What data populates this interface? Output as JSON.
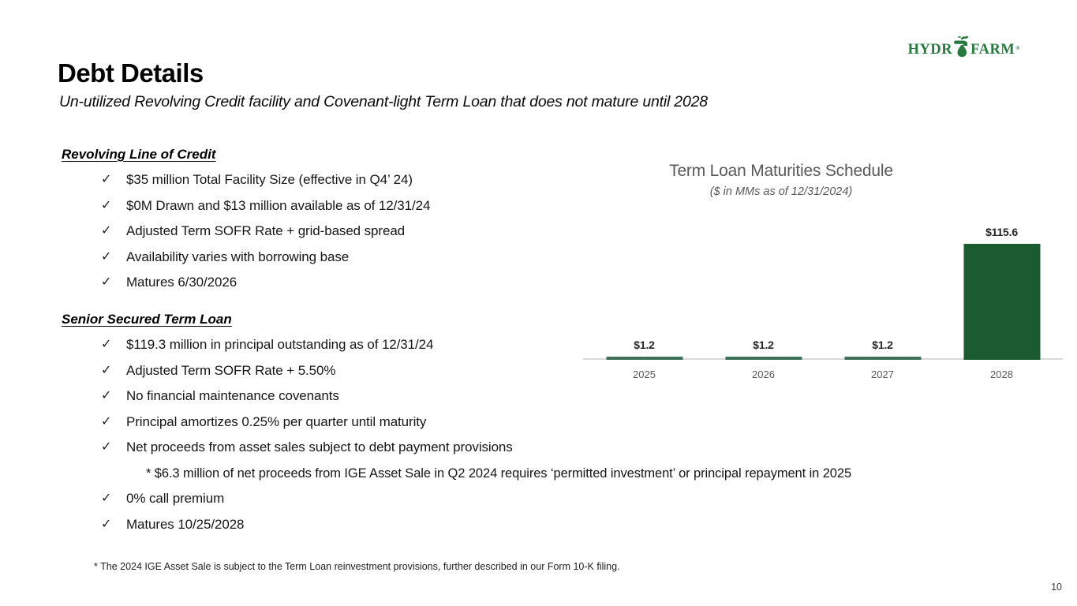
{
  "logo": {
    "part1": "HYDR",
    "part2": "FARM",
    "reg": "®",
    "brand_green": "#26793F"
  },
  "header": {
    "title": "Debt Details",
    "subtitle": "Un-utilized Revolving Credit facility and Covenant-light Term Loan that does not mature until 2028"
  },
  "bullet_glyph": "✓",
  "sections": [
    {
      "heading": "Revolving Line of Credit",
      "items": [
        {
          "text": "$35 million Total Facility Size (effective in Q4’ 24)"
        },
        {
          "text": "$0M Drawn and $13 million available as of 12/31/24"
        },
        {
          "text": "Adjusted Term SOFR Rate + grid-based spread"
        },
        {
          "text": "Availability varies with borrowing base"
        },
        {
          "text": "Matures 6/30/2026"
        }
      ]
    },
    {
      "heading": "Senior Secured Term Loan",
      "items": [
        {
          "text": "$119.3 million in principal outstanding as of 12/31/24"
        },
        {
          "text": "Adjusted Term SOFR Rate + 5.50%"
        },
        {
          "text": "No financial maintenance covenants"
        },
        {
          "text": "Principal amortizes 0.25% per quarter until maturity"
        },
        {
          "text": "Net proceeds from asset sales subject to debt payment provisions",
          "subnote": "* $6.3 million of net proceeds from IGE Asset Sale in Q2 2024 requires ‘permitted investment’ or principal repayment in 2025"
        },
        {
          "text": "0% call premium"
        },
        {
          "text": "Matures 10/25/2028"
        }
      ]
    }
  ],
  "chart_data": {
    "type": "bar",
    "title": "Term Loan Maturities Schedule",
    "subtitle": "($ in MMs as of 12/31/2024)",
    "categories": [
      "2025",
      "2026",
      "2027",
      "2028"
    ],
    "values": [
      1.2,
      1.2,
      1.2,
      115.6
    ],
    "data_labels": [
      "$1.2",
      "$1.2",
      "$1.2",
      "$115.6"
    ],
    "xlabel": "",
    "ylabel": "",
    "ylim": [
      0,
      120
    ],
    "grid": false,
    "legend": false,
    "bar_color_major": "#1A5B2F",
    "bar_color_minor": "#3E7058",
    "axis_color": "#D9D9D9",
    "data_label_color": "#262626",
    "tick_label_color": "#595959"
  },
  "footnote": "* The 2024 IGE Asset Sale is subject to the Term Loan reinvestment provisions, further described in our Form 10-K filing.",
  "page_number": "10"
}
